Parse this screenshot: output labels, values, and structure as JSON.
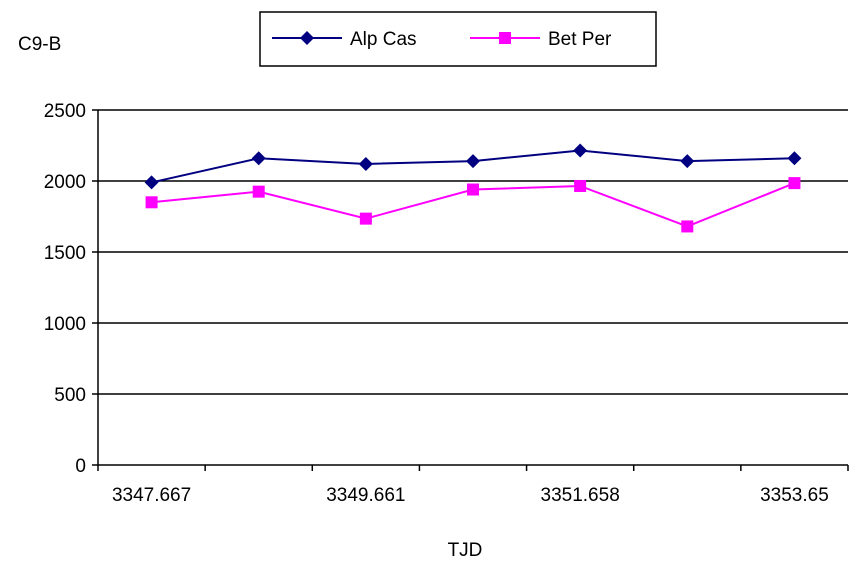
{
  "chart_data": {
    "type": "line",
    "title": "C9-B",
    "xlabel": "TJD",
    "ylabel": "",
    "ylim": [
      0,
      2500
    ],
    "yticks": [
      0,
      500,
      1000,
      1500,
      2000,
      2500
    ],
    "grid": true,
    "legend_position": "top-center",
    "x_tick_labels": [
      "3347.667",
      "3349.661",
      "3351.658",
      "3353.65"
    ],
    "categories": [
      "1",
      "2",
      "3",
      "4",
      "5",
      "6",
      "7"
    ],
    "series": [
      {
        "name": "Alp Cas",
        "color": "#000080",
        "marker": "diamond",
        "values": [
          1990,
          2160,
          2120,
          2140,
          2215,
          2140,
          2160
        ]
      },
      {
        "name": "Bet Per",
        "color": "#ff00ff",
        "marker": "square",
        "values": [
          1850,
          1925,
          1735,
          1940,
          1965,
          1680,
          1985
        ]
      }
    ]
  }
}
